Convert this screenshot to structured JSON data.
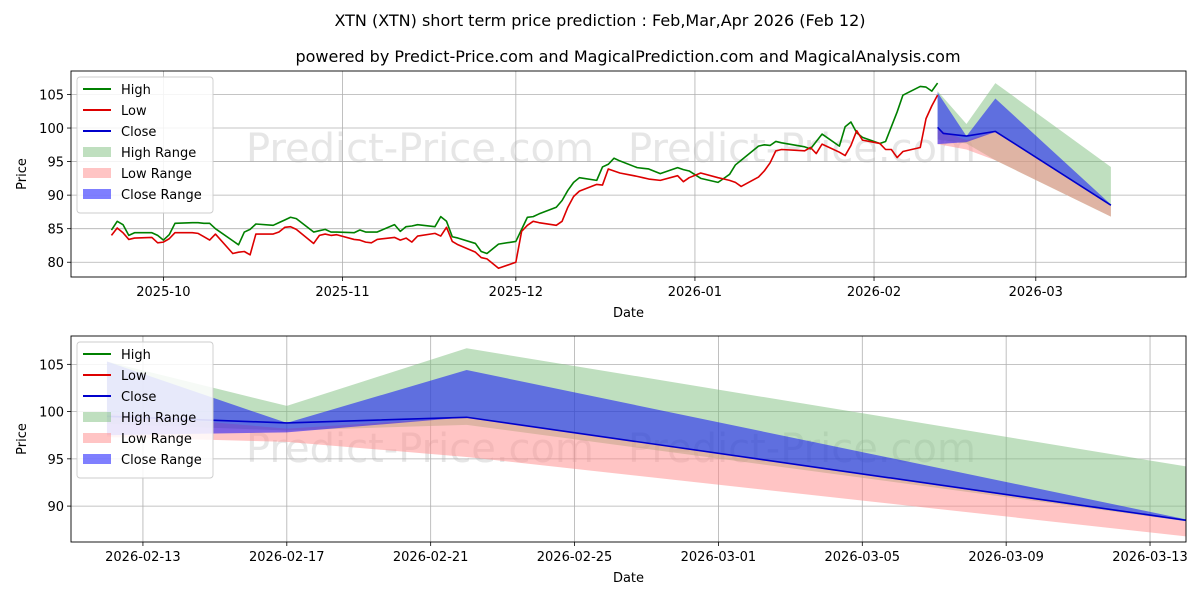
{
  "title": "XTN (XTN) short term price prediction : Feb,Mar,Apr 2026 (Feb 12)",
  "subtitle": "powered by Predict-Price.com and MagicalPrediction.com and MagicalAnalysis.com",
  "watermark": "Predict-Price.com",
  "colors": {
    "high": "#008000",
    "low": "#dd0000",
    "close": "#0000cc",
    "high_range": "#7fbf7f",
    "low_range": "#ff8a8a",
    "close_range": "#0000ff",
    "grid": "#b0b0b0",
    "watermark": "#e6e6e6"
  },
  "chart_data": [
    {
      "type": "line",
      "xlabel": "Date",
      "ylabel": "Price",
      "xlim": [
        "2025-09-15",
        "2026-03-27"
      ],
      "ylim": [
        77.8,
        108.5
      ],
      "x_ticks": [
        "2025-10-01",
        "2025-11-01",
        "2025-12-01",
        "2026-01-01",
        "2026-02-01",
        "2026-03-01"
      ],
      "x_tick_labels": [
        "2025-10",
        "2025-11",
        "2025-12",
        "2026-01",
        "2026-02",
        "2026-03"
      ],
      "y_ticks": [
        80,
        85,
        90,
        95,
        100,
        105
      ],
      "legend": [
        "High",
        "Low",
        "Close",
        "High Range",
        "Low Range",
        "Close Range"
      ],
      "legend_position": "upper-left",
      "grid": true,
      "series": [
        {
          "name": "High",
          "x": [
            "2025-09-22",
            "2025-09-23",
            "2025-09-24",
            "2025-09-25",
            "2025-09-26",
            "2025-09-29",
            "2025-09-30",
            "2025-10-01",
            "2025-10-02",
            "2025-10-03",
            "2025-10-06",
            "2025-10-07",
            "2025-10-08",
            "2025-10-09",
            "2025-10-10",
            "2025-10-13",
            "2025-10-14",
            "2025-10-15",
            "2025-10-16",
            "2025-10-17",
            "2025-10-20",
            "2025-10-21",
            "2025-10-22",
            "2025-10-23",
            "2025-10-24",
            "2025-10-27",
            "2025-10-28",
            "2025-10-29",
            "2025-10-30",
            "2025-10-31",
            "2025-11-03",
            "2025-11-04",
            "2025-11-05",
            "2025-11-06",
            "2025-11-07",
            "2025-11-10",
            "2025-11-11",
            "2025-11-12",
            "2025-11-13",
            "2025-11-14",
            "2025-11-17",
            "2025-11-18",
            "2025-11-19",
            "2025-11-20",
            "2025-11-21",
            "2025-11-24",
            "2025-11-25",
            "2025-11-26",
            "2025-11-28",
            "2025-12-01",
            "2025-12-02",
            "2025-12-03",
            "2025-12-04",
            "2025-12-05",
            "2025-12-08",
            "2025-12-09",
            "2025-12-10",
            "2025-12-11",
            "2025-12-12",
            "2025-12-15",
            "2025-12-16",
            "2025-12-17",
            "2025-12-18",
            "2025-12-19",
            "2025-12-22",
            "2025-12-23",
            "2025-12-24",
            "2025-12-26",
            "2025-12-29",
            "2025-12-30",
            "2025-12-31",
            "2026-01-02",
            "2026-01-05",
            "2026-01-06",
            "2026-01-07",
            "2026-01-08",
            "2026-01-09",
            "2026-01-12",
            "2026-01-13",
            "2026-01-14",
            "2026-01-15",
            "2026-01-16",
            "2026-01-20",
            "2026-01-21",
            "2026-01-22",
            "2026-01-23",
            "2026-01-26",
            "2026-01-27",
            "2026-01-28",
            "2026-01-29",
            "2026-01-30",
            "2026-02-02",
            "2026-02-03",
            "2026-02-04",
            "2026-02-05",
            "2026-02-06",
            "2026-02-09",
            "2026-02-10",
            "2026-02-11",
            "2026-02-12"
          ],
          "values": [
            84.8,
            86.1,
            85.6,
            84.0,
            84.4,
            84.4,
            84.0,
            83.3,
            84.1,
            85.8,
            85.9,
            85.9,
            85.8,
            85.8,
            85.0,
            83.2,
            82.6,
            84.5,
            84.9,
            85.7,
            85.5,
            85.9,
            86.3,
            86.7,
            86.5,
            84.5,
            84.7,
            84.9,
            84.5,
            84.5,
            84.4,
            84.8,
            84.5,
            84.5,
            84.5,
            85.6,
            84.6,
            85.3,
            85.4,
            85.6,
            85.3,
            86.8,
            86.1,
            83.8,
            83.6,
            82.8,
            81.6,
            81.3,
            82.7,
            83.1,
            84.9,
            86.7,
            86.8,
            87.2,
            88.2,
            89.2,
            90.7,
            91.9,
            92.6,
            92.2,
            94.2,
            94.6,
            95.5,
            95.1,
            94.1,
            94.0,
            93.9,
            93.2,
            94.1,
            93.8,
            93.6,
            92.5,
            91.9,
            92.5,
            93.1,
            94.5,
            95.2,
            97.3,
            97.5,
            97.4,
            98.0,
            97.8,
            97.2,
            96.9,
            98.0,
            99.1,
            97.3,
            100.2,
            100.9,
            99.3,
            98.6,
            97.7,
            98.0,
            100.2,
            102.4,
            104.9,
            106.2,
            106.1,
            105.5,
            106.7
          ]
        },
        {
          "name": "Low",
          "x": [
            "2025-09-22",
            "2025-09-23",
            "2025-09-24",
            "2025-09-25",
            "2025-09-26",
            "2025-09-29",
            "2025-09-30",
            "2025-10-01",
            "2025-10-02",
            "2025-10-03",
            "2025-10-06",
            "2025-10-07",
            "2025-10-08",
            "2025-10-09",
            "2025-10-10",
            "2025-10-13",
            "2025-10-14",
            "2025-10-15",
            "2025-10-16",
            "2025-10-17",
            "2025-10-20",
            "2025-10-21",
            "2025-10-22",
            "2025-10-23",
            "2025-10-24",
            "2025-10-27",
            "2025-10-28",
            "2025-10-29",
            "2025-10-30",
            "2025-10-31",
            "2025-11-03",
            "2025-11-04",
            "2025-11-05",
            "2025-11-06",
            "2025-11-07",
            "2025-11-10",
            "2025-11-11",
            "2025-11-12",
            "2025-11-13",
            "2025-11-14",
            "2025-11-17",
            "2025-11-18",
            "2025-11-19",
            "2025-11-20",
            "2025-11-21",
            "2025-11-24",
            "2025-11-25",
            "2025-11-26",
            "2025-11-28",
            "2025-12-01",
            "2025-12-02",
            "2025-12-03",
            "2025-12-04",
            "2025-12-05",
            "2025-12-08",
            "2025-12-09",
            "2025-12-10",
            "2025-12-11",
            "2025-12-12",
            "2025-12-15",
            "2025-12-16",
            "2025-12-17",
            "2025-12-18",
            "2025-12-19",
            "2025-12-22",
            "2025-12-23",
            "2025-12-24",
            "2025-12-26",
            "2025-12-29",
            "2025-12-30",
            "2025-12-31",
            "2026-01-02",
            "2026-01-05",
            "2026-01-06",
            "2026-01-07",
            "2026-01-08",
            "2026-01-09",
            "2026-01-12",
            "2026-01-13",
            "2026-01-14",
            "2026-01-15",
            "2026-01-16",
            "2026-01-20",
            "2026-01-21",
            "2026-01-22",
            "2026-01-23",
            "2026-01-26",
            "2026-01-27",
            "2026-01-28",
            "2026-01-29",
            "2026-01-30",
            "2026-02-02",
            "2026-02-03",
            "2026-02-04",
            "2026-02-05",
            "2026-02-06",
            "2026-02-09",
            "2026-02-10",
            "2026-02-11",
            "2026-02-12"
          ],
          "values": [
            84.0,
            85.1,
            84.4,
            83.4,
            83.6,
            83.7,
            82.9,
            83.0,
            83.5,
            84.4,
            84.4,
            84.3,
            83.8,
            83.3,
            84.2,
            81.3,
            81.5,
            81.6,
            81.1,
            84.2,
            84.2,
            84.5,
            85.2,
            85.3,
            84.9,
            82.8,
            84.0,
            84.2,
            84.0,
            84.1,
            83.4,
            83.3,
            83.0,
            82.9,
            83.4,
            83.7,
            83.3,
            83.6,
            83.0,
            83.9,
            84.3,
            83.9,
            85.2,
            83.1,
            82.6,
            81.5,
            80.7,
            80.5,
            79.1,
            80.0,
            84.6,
            85.5,
            86.1,
            85.9,
            85.5,
            86.1,
            88.2,
            89.8,
            90.6,
            91.6,
            91.5,
            93.9,
            93.6,
            93.3,
            92.8,
            92.6,
            92.4,
            92.2,
            92.9,
            92.0,
            92.6,
            93.3,
            92.6,
            92.4,
            92.2,
            91.9,
            91.3,
            92.7,
            93.6,
            94.8,
            96.6,
            96.8,
            96.6,
            97.1,
            96.2,
            97.6,
            96.4,
            95.9,
            97.4,
            99.6,
            98.2,
            97.7,
            96.8,
            96.8,
            95.6,
            96.5,
            97.1,
            101.4,
            103.3,
            104.9
          ]
        },
        {
          "name": "Close",
          "x": [
            "2026-02-12",
            "2026-02-13",
            "2026-02-17",
            "2026-02-22",
            "2026-03-14"
          ],
          "values": [
            100.1,
            99.2,
            98.8,
            99.5,
            88.5
          ]
        },
        {
          "name": "High Range",
          "x": [
            "2026-02-12",
            "2026-02-17",
            "2026-02-22",
            "2026-03-14"
          ],
          "upper": [
            105.5,
            100.6,
            106.7,
            94.2
          ],
          "lower": [
            98.3,
            97.7,
            95.2,
            86.8
          ]
        },
        {
          "name": "Low Range",
          "x": [
            "2026-02-12",
            "2026-02-17",
            "2026-02-22",
            "2026-03-14"
          ],
          "upper": [
            99.8,
            98.2,
            99.5,
            88.4
          ],
          "lower": [
            97.6,
            96.8,
            95.2,
            86.8
          ]
        },
        {
          "name": "Close Range",
          "x": [
            "2026-02-12",
            "2026-02-17",
            "2026-02-22",
            "2026-03-14"
          ],
          "upper": [
            105.3,
            98.8,
            104.4,
            88.6
          ],
          "lower": [
            97.6,
            97.9,
            99.4,
            88.4
          ]
        }
      ]
    },
    {
      "type": "line",
      "xlabel": "Date",
      "ylabel": "Price",
      "xlim": [
        "2026-02-11",
        "2026-03-14"
      ],
      "ylim": [
        86.2,
        108.0
      ],
      "x_ticks": [
        "2026-02-13",
        "2026-02-17",
        "2026-02-21",
        "2026-02-25",
        "2026-03-01",
        "2026-03-05",
        "2026-03-09",
        "2026-03-13"
      ],
      "x_tick_labels": [
        "2026-02-13",
        "2026-02-17",
        "2026-02-21",
        "2026-02-25",
        "2026-03-01",
        "2026-03-05",
        "2026-03-09",
        "2026-03-13"
      ],
      "y_ticks": [
        90,
        95,
        100,
        105
      ],
      "legend": [
        "High",
        "Low",
        "Close",
        "High Range",
        "Low Range",
        "Close Range"
      ],
      "legend_position": "upper-left",
      "grid": true,
      "series": [
        {
          "name": "Close",
          "x": [
            "2026-02-12",
            "2026-02-17",
            "2026-02-22",
            "2026-03-14"
          ],
          "values": [
            99.5,
            98.8,
            99.4,
            88.5
          ]
        },
        {
          "name": "High Range",
          "x": [
            "2026-02-12",
            "2026-02-17",
            "2026-02-22",
            "2026-03-14"
          ],
          "upper": [
            105.3,
            100.6,
            106.7,
            94.2
          ],
          "lower": [
            98.7,
            98.0,
            98.6,
            88.4
          ]
        },
        {
          "name": "Low Range",
          "x": [
            "2026-02-12",
            "2026-02-17",
            "2026-02-22",
            "2026-03-14"
          ],
          "upper": [
            99.8,
            98.2,
            99.4,
            88.4
          ],
          "lower": [
            97.3,
            96.8,
            95.2,
            86.8
          ]
        },
        {
          "name": "Close Range",
          "x": [
            "2026-02-12",
            "2026-02-17",
            "2026-02-22",
            "2026-03-14"
          ],
          "upper": [
            105.3,
            98.8,
            104.4,
            88.6
          ],
          "lower": [
            97.5,
            97.8,
            99.4,
            88.4
          ]
        }
      ]
    }
  ]
}
